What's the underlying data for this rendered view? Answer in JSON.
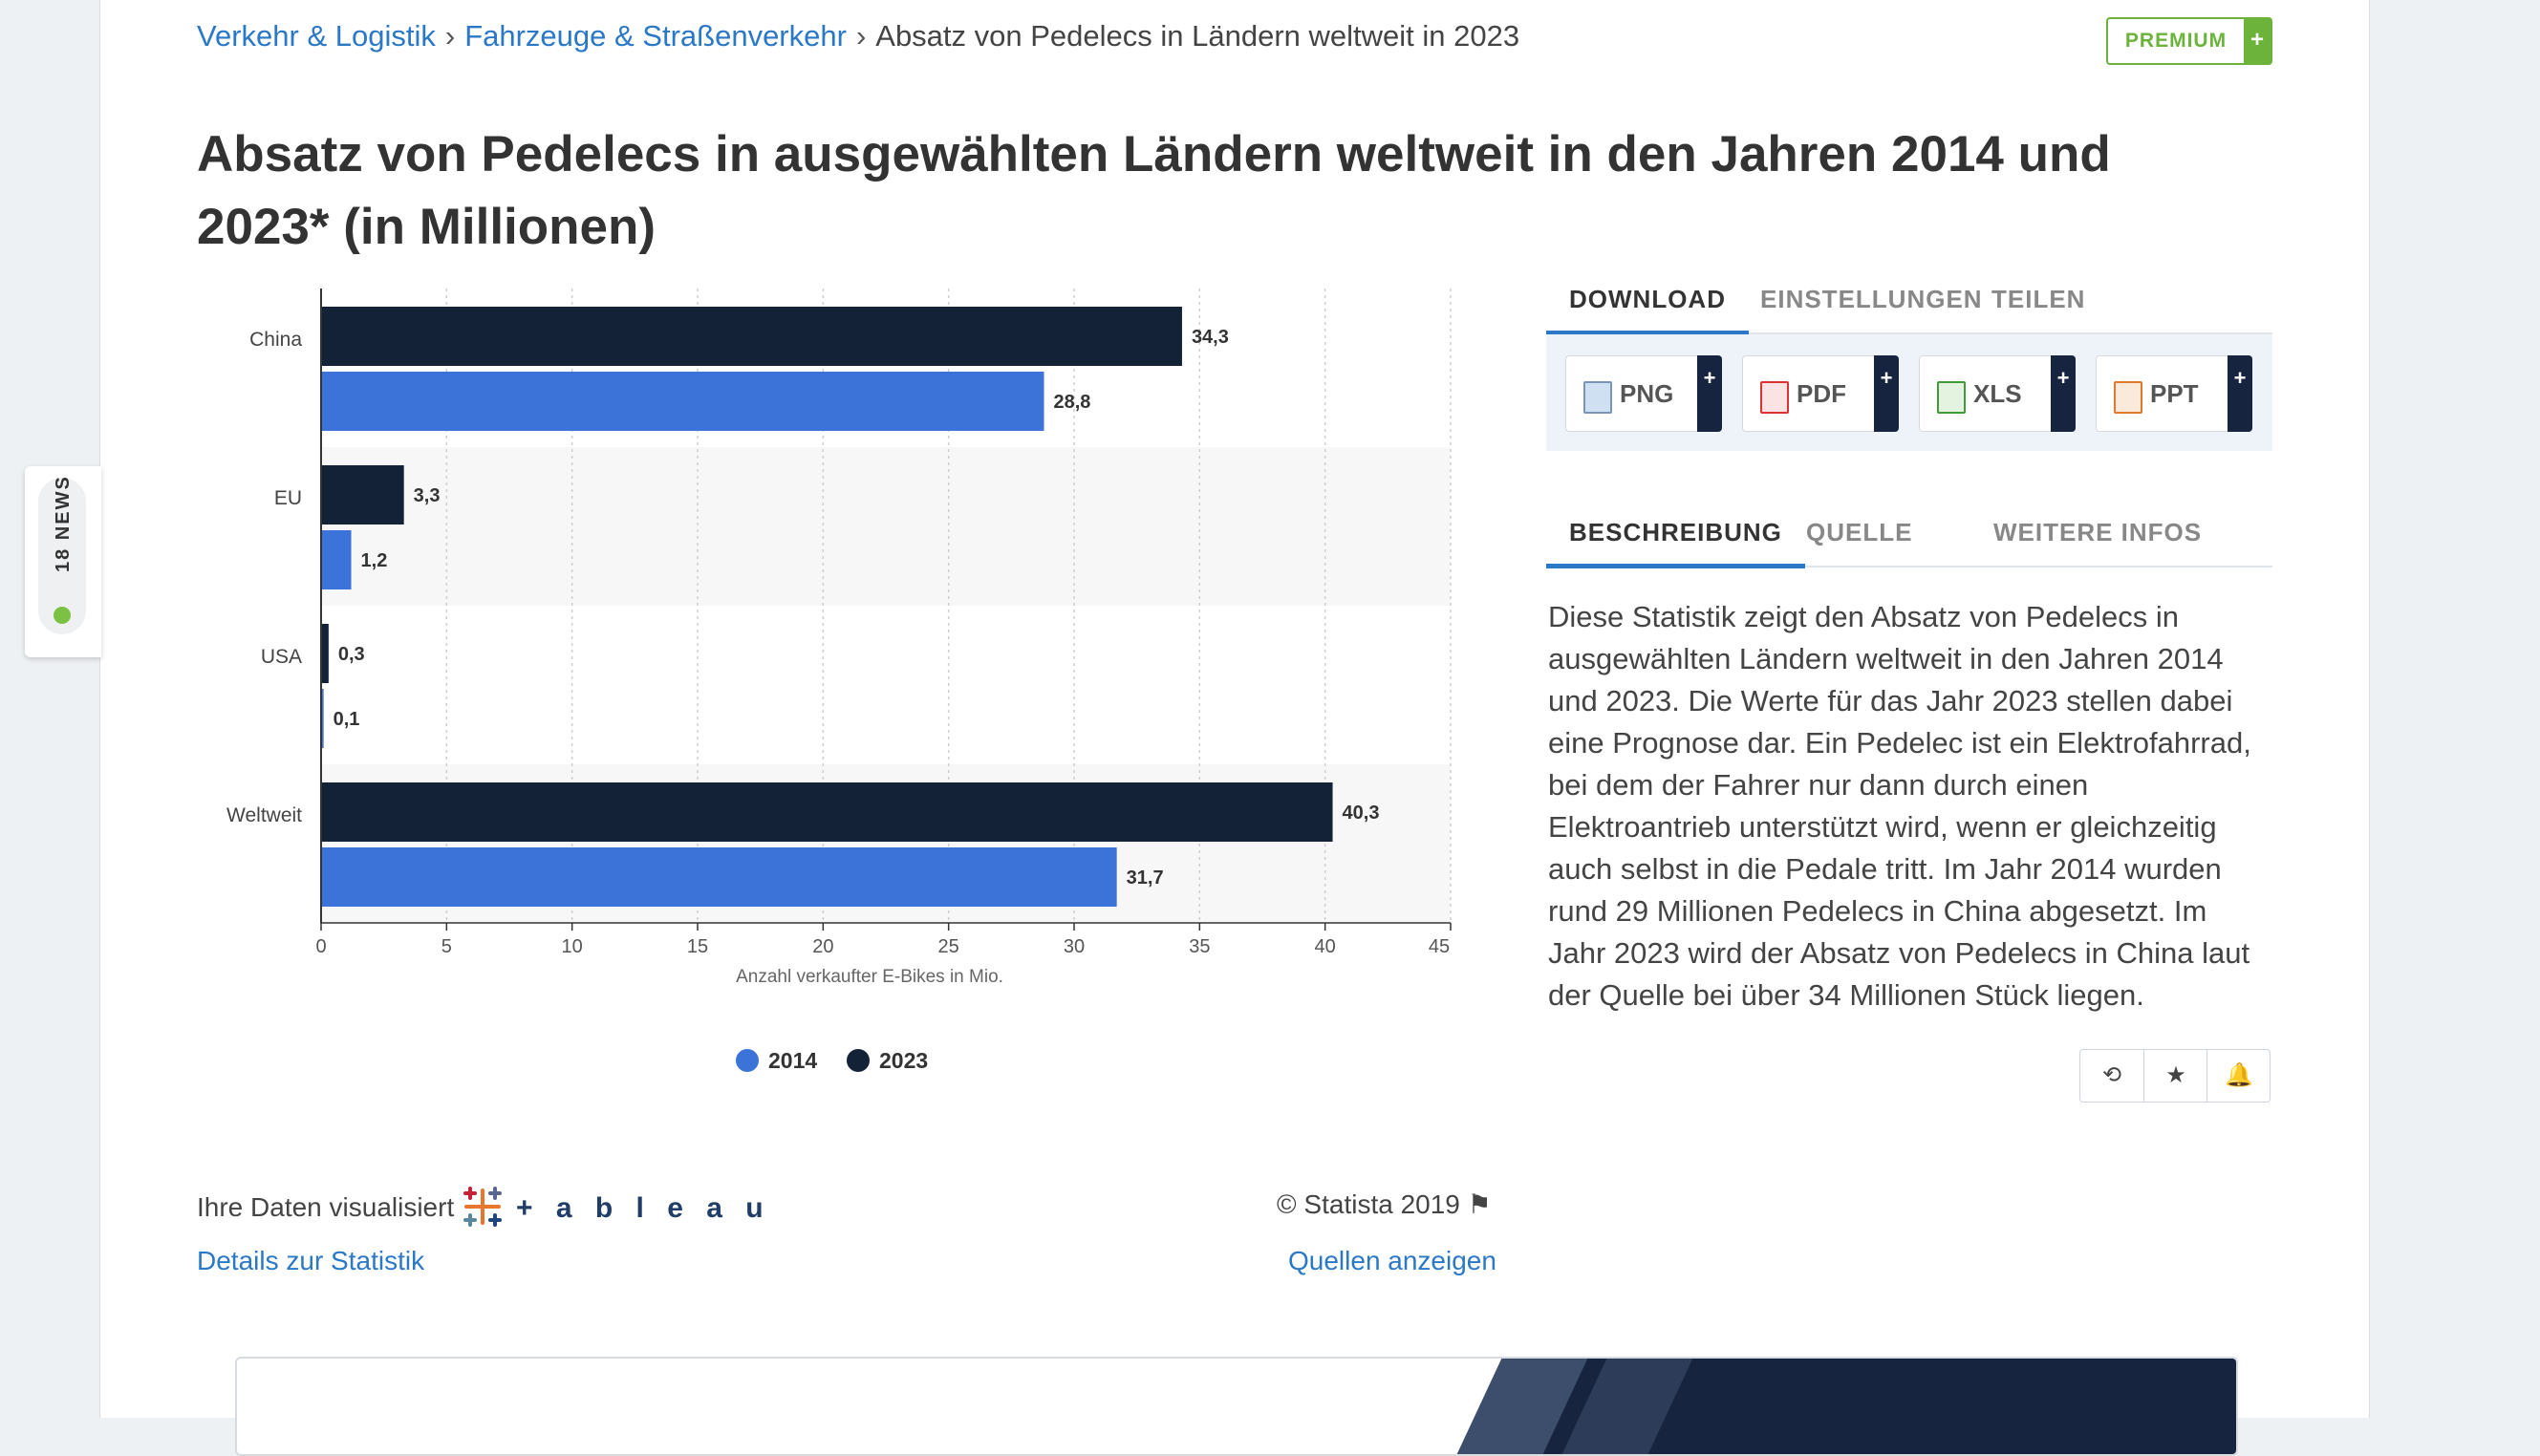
{
  "breadcrumb": {
    "items": [
      "Verkehr & Logistik",
      "Fahrzeuge & Straßenverkehr",
      "Absatz von Pedelecs in Ländern weltweit in 2023"
    ],
    "separator": "›"
  },
  "premium": {
    "label": "PREMIUM",
    "plus": "+"
  },
  "title": "Absatz von Pedelecs in ausgewählten Ländern weltweit in den Jahren 2014 und 2023* (in Millionen)",
  "news_tab": {
    "label": "18 NEWS"
  },
  "colors": {
    "series_2014": "#3b73d8",
    "series_2023": "#142238",
    "accent": "#2a78c6",
    "premium_green": "#6bb33a"
  },
  "chart_data": {
    "type": "bar",
    "orientation": "horizontal",
    "categories": [
      "China",
      "EU",
      "USA",
      "Weltweit"
    ],
    "series": [
      {
        "name": "2023",
        "values": [
          34.3,
          3.3,
          0.3,
          40.3
        ],
        "labels": [
          "34,3",
          "3,3",
          "0,3",
          "40,3"
        ]
      },
      {
        "name": "2014",
        "values": [
          28.8,
          1.2,
          0.1,
          31.7
        ],
        "labels": [
          "28,8",
          "1,2",
          "0,1",
          "31,7"
        ]
      }
    ],
    "xlabel": "Anzahl verkaufter E-Bikes in Mio.",
    "xlim": [
      0,
      45
    ],
    "xticks": [
      0,
      5,
      10,
      15,
      20,
      25,
      30,
      35,
      40,
      45
    ],
    "legend": [
      "2014",
      "2023"
    ],
    "grid": true,
    "legend_position": "bottom-center"
  },
  "download_tabs": [
    "DOWNLOAD",
    "EINSTELLUNGEN",
    "TEILEN"
  ],
  "download_buttons": [
    {
      "label": "PNG",
      "icon": "png-file-icon",
      "plus": "+"
    },
    {
      "label": "PDF",
      "icon": "pdf-file-icon",
      "plus": "+"
    },
    {
      "label": "XLS",
      "icon": "xls-file-icon",
      "plus": "+"
    },
    {
      "label": "PPT",
      "icon": "ppt-file-icon",
      "plus": "+"
    }
  ],
  "info_tabs": [
    "BESCHREIBUNG",
    "QUELLE",
    "WEITERE INFOS"
  ],
  "description": "Diese Statistik zeigt den Absatz von Pedelecs in ausgewählten Ländern weltweit in den Jahren 2014 und 2023. Die Werte für das Jahr 2023 stellen dabei eine Prognose dar. Ein Pedelec ist ein Elektrofahrrad, bei dem der Fahrer nur dann durch einen Elektroantrieb unterstützt wird, wenn er gleichzeitig auch selbst in die Pedale tritt. Im Jahr 2014 wurden rund 29 Millionen Pedelecs in China abgesetzt. Im Jahr 2023 wird der Absatz von Pedelecs in China laut der Quelle bei über 34 Millionen Stück liegen.",
  "actions": {
    "history": "⟲",
    "favorite": "★",
    "alert": "🔔"
  },
  "footer": {
    "visualized_label": "Ihre Daten visualisiert",
    "tableau_word": "+ a b l e a u",
    "details_link": "Details zur Statistik",
    "copyright": "© Statista 2019",
    "flag": "⚑",
    "sources_link": "Quellen anzeigen"
  }
}
